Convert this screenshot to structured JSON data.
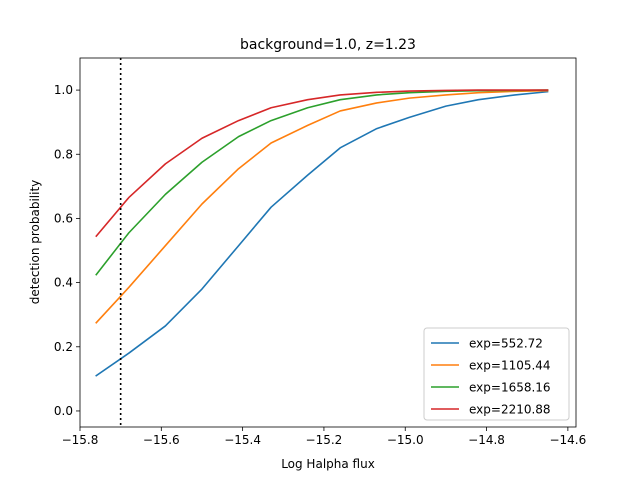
{
  "chart_data": {
    "type": "line",
    "title": "background=1.0, z=1.23",
    "xlabel": "Log Halpha flux",
    "ylabel": "detection probability",
    "xlim": [
      -15.8,
      -14.58
    ],
    "ylim": [
      -0.05,
      1.1
    ],
    "xticks": [
      -15.8,
      -15.6,
      -15.4,
      -15.2,
      -15.0,
      -14.8,
      -14.6
    ],
    "xtick_labels": [
      "−15.8",
      "−15.6",
      "−15.4",
      "−15.2",
      "−15.0",
      "−14.8",
      "−14.6"
    ],
    "yticks": [
      0.0,
      0.2,
      0.4,
      0.6,
      0.8,
      1.0
    ],
    "ytick_labels": [
      "0.0",
      "0.2",
      "0.4",
      "0.6",
      "0.8",
      "1.0"
    ],
    "vline": {
      "x": -15.7,
      "style": "dotted",
      "color": "#000000"
    },
    "legend_position": "lower-right",
    "x": [
      -15.76,
      -15.68,
      -15.59,
      -15.5,
      -15.41,
      -15.33,
      -15.24,
      -15.16,
      -15.07,
      -14.99,
      -14.9,
      -14.82,
      -14.73,
      -14.65
    ],
    "series": [
      {
        "name": "exp=552.72",
        "color": "#1f77b4",
        "values": [
          0.11,
          0.18,
          0.265,
          0.38,
          0.515,
          0.635,
          0.735,
          0.82,
          0.88,
          0.915,
          0.95,
          0.97,
          0.985,
          0.995
        ]
      },
      {
        "name": "exp=1105.44",
        "color": "#ff7f0e",
        "values": [
          0.275,
          0.385,
          0.515,
          0.645,
          0.755,
          0.835,
          0.89,
          0.935,
          0.96,
          0.975,
          0.985,
          0.992,
          0.996,
          0.998
        ]
      },
      {
        "name": "exp=1658.16",
        "color": "#2ca02c",
        "values": [
          0.425,
          0.555,
          0.675,
          0.775,
          0.855,
          0.905,
          0.945,
          0.97,
          0.985,
          0.992,
          0.996,
          0.998,
          0.999,
          1.0
        ]
      },
      {
        "name": "exp=2210.88",
        "color": "#d62728",
        "values": [
          0.545,
          0.665,
          0.77,
          0.85,
          0.905,
          0.945,
          0.97,
          0.985,
          0.993,
          0.997,
          0.999,
          1.0,
          1.0,
          1.0
        ]
      }
    ]
  }
}
